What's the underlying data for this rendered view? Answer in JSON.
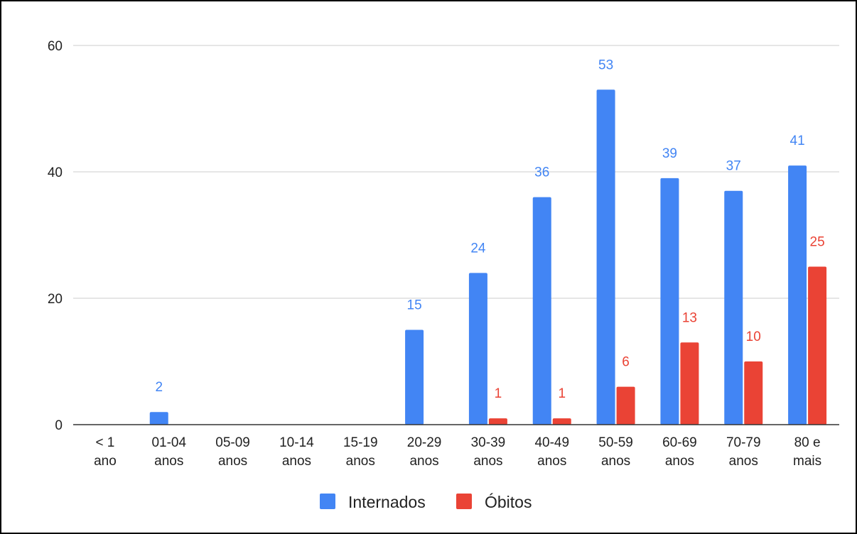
{
  "chart_data": {
    "type": "bar",
    "categories": [
      [
        "< 1",
        "ano"
      ],
      [
        "01-04",
        "anos"
      ],
      [
        "05-09",
        "anos"
      ],
      [
        "10-14",
        "anos"
      ],
      [
        "15-19",
        "anos"
      ],
      [
        "20-29",
        "anos"
      ],
      [
        "30-39",
        "anos"
      ],
      [
        "40-49",
        "anos"
      ],
      [
        "50-59",
        "anos"
      ],
      [
        "60-69",
        "anos"
      ],
      [
        "70-79",
        "anos"
      ],
      [
        "80 e",
        "mais"
      ]
    ],
    "series": [
      {
        "name": "Internados",
        "color": "#4285f4",
        "values": [
          0,
          2,
          0,
          0,
          0,
          15,
          24,
          36,
          53,
          39,
          37,
          41
        ],
        "labels": [
          "",
          "2",
          "",
          "",
          "",
          "15",
          "24",
          "36",
          "53",
          "39",
          "37",
          "41"
        ]
      },
      {
        "name": "Óbitos",
        "color": "#ea4335",
        "values": [
          0,
          0,
          0,
          0,
          0,
          0,
          1,
          1,
          6,
          13,
          10,
          25
        ],
        "labels": [
          "",
          "",
          "",
          "",
          "",
          "",
          "1",
          "1",
          "6",
          "13",
          "10",
          "25"
        ]
      }
    ],
    "title": "",
    "xlabel": "",
    "ylabel": "",
    "ylim": [
      0,
      60
    ],
    "yticks": [
      "0",
      "20",
      "40",
      "60"
    ],
    "grid": true,
    "legend_position": "bottom"
  }
}
